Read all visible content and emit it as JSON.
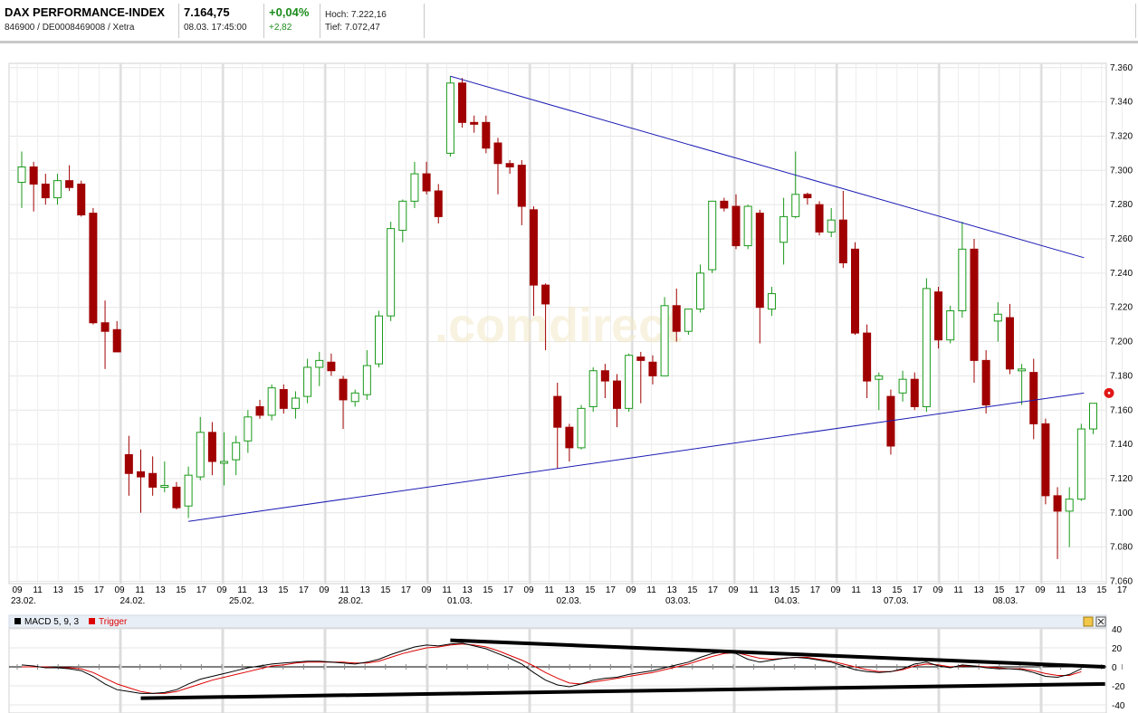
{
  "header": {
    "name": "DAX PERFORMANCE-INDEX",
    "id_line": "846900 / DE0008469008 / Xetra",
    "price": "7.164,75",
    "datetime": "08.03. 17:45:00",
    "change_pct": "+0,04%",
    "change_abs": "+2,82",
    "high": "Hoch: 7.222,16",
    "low": "Tief: 7.072,47"
  },
  "colors": {
    "up": "#1a9a1a",
    "down": "#a00000",
    "trendline": "#1b1bb4",
    "macd": "#000000",
    "trigger": "#dd0000"
  },
  "chart_data": [
    {
      "type": "candlestick",
      "title": "",
      "y_ticks": [
        "7.360",
        "7.340",
        "7.320",
        "7.300",
        "7.280",
        "7.260",
        "7.240",
        "7.220",
        "7.200",
        "7.180",
        "7.160",
        "7.140",
        "7.120",
        "7.100",
        "7.080",
        "7.060"
      ],
      "ylim": [
        7060,
        7370
      ],
      "grid": true,
      "watermark": ".comdirect",
      "x_hour_labels": [
        "09",
        "11",
        "13",
        "15",
        "17",
        "09",
        "11",
        "13",
        "15",
        "17",
        "09",
        "11",
        "13",
        "15",
        "17",
        "09",
        "11",
        "13",
        "15",
        "17",
        "09",
        "11",
        "13",
        "15",
        "17",
        "09",
        "11",
        "13",
        "15",
        "17",
        "09",
        "11",
        "13",
        "15",
        "17",
        "09",
        "11",
        "13",
        "15",
        "17",
        "09",
        "11",
        "13",
        "15",
        "17",
        "09",
        "11",
        "13",
        "15",
        "17",
        "09",
        "11",
        "13",
        "15",
        "17"
      ],
      "x_day_labels": [
        "23.02.",
        "24.02.",
        "25.02.",
        "28.02.",
        "01.03.",
        "02.03.",
        "03.03.",
        "04.03.",
        "07.03.",
        "08.03."
      ],
      "candles": [
        {
          "o": 7293,
          "h": 7311,
          "l": 7278,
          "c": 7302
        },
        {
          "o": 7302,
          "h": 7305,
          "l": 7276,
          "c": 7292
        },
        {
          "o": 7292,
          "h": 7298,
          "l": 7280,
          "c": 7284
        },
        {
          "o": 7284,
          "h": 7298,
          "l": 7280,
          "c": 7294
        },
        {
          "o": 7294,
          "h": 7303,
          "l": 7288,
          "c": 7290
        },
        {
          "o": 7292,
          "h": 7294,
          "l": 7273,
          "c": 7274
        },
        {
          "o": 7275,
          "h": 7278,
          "l": 7210,
          "c": 7211
        },
        {
          "o": 7211,
          "h": 7224,
          "l": 7184,
          "c": 7206
        },
        {
          "o": 7207,
          "h": 7212,
          "l": 7194,
          "c": 7194
        },
        {
          "o": 7134,
          "h": 7145,
          "l": 7110,
          "c": 7123
        },
        {
          "o": 7124,
          "h": 7137,
          "l": 7100,
          "c": 7121
        },
        {
          "o": 7123,
          "h": 7133,
          "l": 7110,
          "c": 7115
        },
        {
          "o": 7116,
          "h": 7130,
          "l": 7112,
          "c": 7116
        },
        {
          "o": 7115,
          "h": 7118,
          "l": 7102,
          "c": 7103
        },
        {
          "o": 7104,
          "h": 7127,
          "l": 7097,
          "c": 7122
        },
        {
          "o": 7121,
          "h": 7156,
          "l": 7119,
          "c": 7147
        },
        {
          "o": 7147,
          "h": 7153,
          "l": 7122,
          "c": 7130
        },
        {
          "o": 7130,
          "h": 7147,
          "l": 7116,
          "c": 7130
        },
        {
          "o": 7131,
          "h": 7145,
          "l": 7122,
          "c": 7141
        },
        {
          "o": 7142,
          "h": 7160,
          "l": 7135,
          "c": 7156
        },
        {
          "o": 7162,
          "h": 7166,
          "l": 7155,
          "c": 7157
        },
        {
          "o": 7157,
          "h": 7175,
          "l": 7154,
          "c": 7173
        },
        {
          "o": 7172,
          "h": 7175,
          "l": 7158,
          "c": 7161
        },
        {
          "o": 7161,
          "h": 7171,
          "l": 7155,
          "c": 7167
        },
        {
          "o": 7168,
          "h": 7190,
          "l": 7164,
          "c": 7185
        },
        {
          "o": 7185,
          "h": 7194,
          "l": 7174,
          "c": 7189
        },
        {
          "o": 7188,
          "h": 7193,
          "l": 7180,
          "c": 7183
        },
        {
          "o": 7178,
          "h": 7180,
          "l": 7149,
          "c": 7166
        },
        {
          "o": 7165,
          "h": 7172,
          "l": 7162,
          "c": 7170
        },
        {
          "o": 7169,
          "h": 7195,
          "l": 7166,
          "c": 7186
        },
        {
          "o": 7187,
          "h": 7218,
          "l": 7185,
          "c": 7215
        },
        {
          "o": 7215,
          "h": 7270,
          "l": 7212,
          "c": 7266
        },
        {
          "o": 7265,
          "h": 7283,
          "l": 7258,
          "c": 7282
        },
        {
          "o": 7282,
          "h": 7305,
          "l": 7278,
          "c": 7298
        },
        {
          "o": 7298,
          "h": 7305,
          "l": 7286,
          "c": 7288
        },
        {
          "o": 7288,
          "h": 7292,
          "l": 7269,
          "c": 7273
        },
        {
          "o": 7310,
          "h": 7355,
          "l": 7308,
          "c": 7351
        },
        {
          "o": 7351,
          "h": 7354,
          "l": 7325,
          "c": 7328
        },
        {
          "o": 7328,
          "h": 7332,
          "l": 7322,
          "c": 7327
        },
        {
          "o": 7328,
          "h": 7332,
          "l": 7310,
          "c": 7313
        },
        {
          "o": 7316,
          "h": 7319,
          "l": 7286,
          "c": 7304
        },
        {
          "o": 7304,
          "h": 7306,
          "l": 7298,
          "c": 7302
        },
        {
          "o": 7303,
          "h": 7306,
          "l": 7268,
          "c": 7279
        },
        {
          "o": 7277,
          "h": 7279,
          "l": 7215,
          "c": 7233
        },
        {
          "o": 7233,
          "h": 7234,
          "l": 7195,
          "c": 7222
        },
        {
          "o": 7168,
          "h": 7176,
          "l": 7126,
          "c": 7150
        },
        {
          "o": 7150,
          "h": 7152,
          "l": 7130,
          "c": 7138
        },
        {
          "o": 7138,
          "h": 7163,
          "l": 7137,
          "c": 7161
        },
        {
          "o": 7162,
          "h": 7185,
          "l": 7159,
          "c": 7183
        },
        {
          "o": 7183,
          "h": 7187,
          "l": 7167,
          "c": 7177
        },
        {
          "o": 7177,
          "h": 7181,
          "l": 7150,
          "c": 7161
        },
        {
          "o": 7161,
          "h": 7193,
          "l": 7159,
          "c": 7192
        },
        {
          "o": 7191,
          "h": 7194,
          "l": 7164,
          "c": 7189
        },
        {
          "o": 7188,
          "h": 7192,
          "l": 7175,
          "c": 7180
        },
        {
          "o": 7180,
          "h": 7226,
          "l": 7180,
          "c": 7221
        },
        {
          "o": 7221,
          "h": 7231,
          "l": 7200,
          "c": 7206
        },
        {
          "o": 7206,
          "h": 7219,
          "l": 7204,
          "c": 7219
        },
        {
          "o": 7219,
          "h": 7245,
          "l": 7217,
          "c": 7240
        },
        {
          "o": 7242,
          "h": 7282,
          "l": 7240,
          "c": 7282
        },
        {
          "o": 7282,
          "h": 7284,
          "l": 7276,
          "c": 7278
        },
        {
          "o": 7279,
          "h": 7286,
          "l": 7254,
          "c": 7256
        },
        {
          "o": 7256,
          "h": 7280,
          "l": 7254,
          "c": 7279
        },
        {
          "o": 7275,
          "h": 7277,
          "l": 7199,
          "c": 7220
        },
        {
          "o": 7219,
          "h": 7232,
          "l": 7215,
          "c": 7228
        },
        {
          "o": 7258,
          "h": 7284,
          "l": 7245,
          "c": 7273
        },
        {
          "o": 7273,
          "h": 7311,
          "l": 7272,
          "c": 7286
        },
        {
          "o": 7286,
          "h": 7287,
          "l": 7280,
          "c": 7284
        },
        {
          "o": 7280,
          "h": 7282,
          "l": 7262,
          "c": 7264
        },
        {
          "o": 7264,
          "h": 7278,
          "l": 7261,
          "c": 7271
        },
        {
          "o": 7271,
          "h": 7288,
          "l": 7243,
          "c": 7246
        },
        {
          "o": 7254,
          "h": 7258,
          "l": 7204,
          "c": 7205
        },
        {
          "o": 7205,
          "h": 7210,
          "l": 7167,
          "c": 7177
        },
        {
          "o": 7178,
          "h": 7182,
          "l": 7160,
          "c": 7180
        },
        {
          "o": 7168,
          "h": 7172,
          "l": 7134,
          "c": 7139
        },
        {
          "o": 7170,
          "h": 7183,
          "l": 7165,
          "c": 7178
        },
        {
          "o": 7178,
          "h": 7182,
          "l": 7160,
          "c": 7162
        },
        {
          "o": 7162,
          "h": 7237,
          "l": 7159,
          "c": 7231
        },
        {
          "o": 7229,
          "h": 7232,
          "l": 7196,
          "c": 7201
        },
        {
          "o": 7201,
          "h": 7221,
          "l": 7199,
          "c": 7218
        },
        {
          "o": 7218,
          "h": 7270,
          "l": 7214,
          "c": 7254
        },
        {
          "o": 7254,
          "h": 7260,
          "l": 7176,
          "c": 7189
        },
        {
          "o": 7189,
          "h": 7195,
          "l": 7158,
          "c": 7163
        },
        {
          "o": 7212,
          "h": 7223,
          "l": 7200,
          "c": 7216
        },
        {
          "o": 7214,
          "h": 7222,
          "l": 7181,
          "c": 7184
        },
        {
          "o": 7183,
          "h": 7187,
          "l": 7163,
          "c": 7184
        },
        {
          "o": 7182,
          "h": 7190,
          "l": 7143,
          "c": 7152
        },
        {
          "o": 7152,
          "h": 7155,
          "l": 7105,
          "c": 7110
        },
        {
          "o": 7110,
          "h": 7115,
          "l": 7073,
          "c": 7101
        },
        {
          "o": 7101,
          "h": 7115,
          "l": 7080,
          "c": 7108
        },
        {
          "o": 7108,
          "h": 7152,
          "l": 7107,
          "c": 7149
        },
        {
          "o": 7149,
          "h": 7164,
          "l": 7146,
          "c": 7164
        }
      ],
      "trendlines": [
        {
          "from": [
            36,
            7355
          ],
          "to": [
            89,
            7249
          ]
        },
        {
          "from": [
            14,
            7095
          ],
          "to": [
            89,
            7170
          ]
        }
      ],
      "last_marker": {
        "index": 89,
        "value": 7170
      }
    },
    {
      "type": "line",
      "title": "",
      "legend": [
        {
          "name": "MACD 5, 9, 3",
          "color": "#000000"
        },
        {
          "name": "Trigger",
          "color": "#dd0000"
        }
      ],
      "legend_placement": "top-left",
      "y_ticks": [
        "40",
        "20",
        "0",
        "-20",
        "-40"
      ],
      "ylim": [
        -40,
        40
      ],
      "grid": true,
      "series": [
        {
          "name": "MACD 5, 9, 3",
          "values": [
            2,
            1,
            -1,
            -1,
            -2,
            -4,
            -10,
            -18,
            -24,
            -26,
            -28,
            -28,
            -27,
            -24,
            -18,
            -13,
            -10,
            -7,
            -4,
            -1,
            1,
            3,
            4,
            5,
            6,
            6,
            5,
            4,
            3,
            5,
            8,
            13,
            17,
            21,
            23,
            22,
            24,
            25,
            22,
            19,
            14,
            9,
            3,
            -6,
            -14,
            -19,
            -21,
            -18,
            -14,
            -12,
            -11,
            -8,
            -6,
            -4,
            -1,
            2,
            5,
            10,
            14,
            16,
            14,
            8,
            5,
            7,
            9,
            10,
            9,
            7,
            5,
            1,
            -3,
            -5,
            -6,
            -5,
            -2,
            3,
            5,
            1,
            -1,
            2,
            1,
            -1,
            -2,
            -2,
            -3,
            -6,
            -10,
            -11,
            -8,
            -2
          ]
        },
        {
          "name": "Trigger",
          "values": [
            0,
            0,
            0,
            -1,
            -1,
            -2,
            -6,
            -12,
            -18,
            -22,
            -26,
            -28,
            -28,
            -26,
            -22,
            -18,
            -14,
            -11,
            -8,
            -5,
            -2,
            1,
            2,
            4,
            5,
            5,
            5,
            5,
            4,
            4,
            6,
            10,
            14,
            17,
            20,
            21,
            23,
            24,
            23,
            21,
            17,
            12,
            7,
            1,
            -6,
            -12,
            -17,
            -18,
            -16,
            -14,
            -12,
            -10,
            -8,
            -6,
            -3,
            0,
            3,
            7,
            11,
            14,
            15,
            12,
            9,
            8,
            9,
            10,
            10,
            8,
            6,
            3,
            0,
            -3,
            -5,
            -5,
            -3,
            1,
            3,
            2,
            0,
            1,
            1,
            0,
            -1,
            -2,
            -2,
            -4,
            -7,
            -9,
            -9,
            -5
          ]
        }
      ],
      "trendlines": [
        {
          "from": [
            36,
            28
          ],
          "to": [
            91,
            0
          ]
        },
        {
          "from": [
            10,
            -33
          ],
          "to": [
            91,
            -18
          ]
        }
      ]
    }
  ]
}
